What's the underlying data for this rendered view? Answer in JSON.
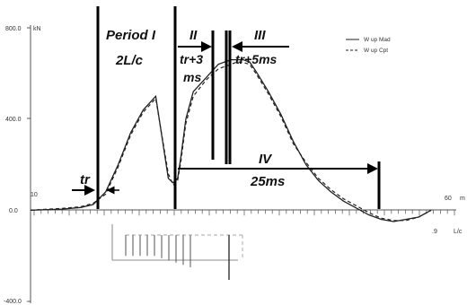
{
  "chart_data": {
    "type": "line",
    "y_unit": "kN",
    "x_unit": "m",
    "x_unit_secondary": "L/c",
    "y_tick_labels": [
      "800.0",
      "400.0",
      "0.0",
      "-400.0"
    ],
    "x_tick_labels": [
      ".9"
    ],
    "x_extra_labels": [
      "10",
      "60"
    ],
    "ylim": [
      -400,
      800
    ],
    "xlim": [
      0,
      68
    ],
    "legend": [
      "W up Mad",
      "W up Cpt"
    ],
    "series": [
      {
        "name": "W up Mad",
        "x": [
          0,
          5,
          8,
          10,
          12,
          14,
          16,
          18,
          20,
          22,
          22.8,
          23.5,
          24,
          24.8,
          26,
          28,
          30,
          32,
          33,
          34,
          35,
          36,
          38,
          40,
          42,
          44,
          46,
          48,
          50,
          52,
          54,
          56,
          58,
          60,
          62,
          64
        ],
        "y": [
          0,
          5,
          12,
          25,
          80,
          200,
          340,
          440,
          500,
          140,
          120,
          140,
          230,
          400,
          520,
          580,
          640,
          660,
          660,
          660,
          650,
          610,
          520,
          420,
          300,
          200,
          130,
          80,
          40,
          10,
          -20,
          -40,
          -50,
          -40,
          -30,
          0
        ]
      },
      {
        "name": "W up Cpt",
        "x": [
          0,
          5,
          8,
          10,
          12,
          14,
          16,
          18,
          20,
          22,
          22.8,
          23.5,
          24,
          24.8,
          26,
          28,
          30,
          32,
          33,
          34,
          35,
          36,
          38,
          40,
          42,
          44,
          46,
          48,
          50,
          52,
          54,
          56,
          58,
          60,
          62,
          64
        ],
        "y": [
          0,
          8,
          15,
          30,
          70,
          190,
          330,
          430,
          490,
          160,
          110,
          130,
          210,
          380,
          500,
          570,
          620,
          640,
          650,
          648,
          640,
          600,
          510,
          410,
          290,
          210,
          140,
          90,
          50,
          20,
          -10,
          -35,
          -45,
          -45,
          -30,
          0
        ]
      }
    ],
    "annotations": {
      "period1": "Period I",
      "period1_value": "2L/c",
      "period2": "II",
      "period2_value1": "tr+3",
      "period2_value2": "ms",
      "period3": "III",
      "period3_value": "tr+5ms",
      "period4": "IV",
      "period4_value": "25ms",
      "tr": "tr"
    },
    "lower_bars": {
      "values": [
        -200,
        -200,
        -200,
        -200,
        -200,
        -210,
        -220,
        -230,
        -240,
        -250
      ]
    }
  }
}
